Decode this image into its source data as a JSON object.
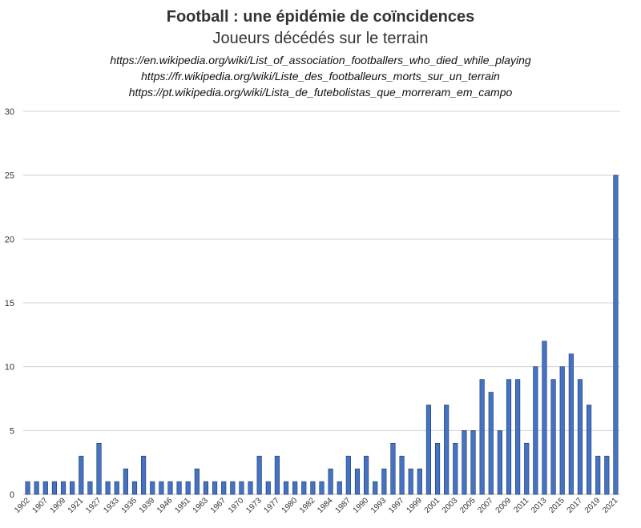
{
  "chart_data": {
    "type": "bar",
    "title": "Football : une épidémie de coïncidences",
    "subtitle": "Joueurs décédés sur le terrain",
    "sources": [
      "https://en.wikipedia.org/wiki/List_of_association_footballers_who_died_while_playing",
      "https://fr.wikipedia.org/wiki/Liste_des_footballeurs_morts_sur_un_terrain",
      "https://pt.wikipedia.org/wiki/Lista_de_futebolistas_que_morreram_em_campo"
    ],
    "xlabel": "",
    "ylabel": "",
    "ylim": [
      0,
      30
    ],
    "yticks": [
      0,
      5,
      10,
      15,
      20,
      25,
      30
    ],
    "grid": true,
    "bar_color": "#4472C4",
    "bar_edge_color": "#1F3864",
    "categories": [
      "1902",
      "",
      "1907",
      "",
      "1909",
      "",
      "1921",
      "",
      "1927",
      "",
      "1933",
      "",
      "1935",
      "",
      "1939",
      "",
      "1946",
      "",
      "1951",
      "",
      "1963",
      "",
      "1967",
      "",
      "1970",
      "",
      "1973",
      "",
      "1977",
      "",
      "1980",
      "",
      "1982",
      "",
      "1984",
      "",
      "1987",
      "",
      "1990",
      "",
      "1993",
      "",
      "1997",
      "",
      "1999",
      "",
      "2001",
      "",
      "2003",
      "",
      "2005",
      "",
      "2007",
      "",
      "2009",
      "",
      "2011",
      "",
      "2013",
      "",
      "2015",
      "",
      "2017",
      "",
      "2019",
      "",
      "2021"
    ],
    "values": [
      1,
      1,
      1,
      1,
      1,
      1,
      3,
      1,
      4,
      1,
      1,
      2,
      1,
      3,
      1,
      1,
      1,
      1,
      1,
      2,
      1,
      1,
      1,
      1,
      1,
      1,
      3,
      1,
      3,
      1,
      1,
      1,
      1,
      1,
      2,
      1,
      3,
      2,
      3,
      1,
      2,
      4,
      3,
      2,
      2,
      7,
      4,
      7,
      4,
      5,
      5,
      9,
      8,
      5,
      9,
      9,
      4,
      10,
      12,
      9,
      10,
      11,
      9,
      7,
      3,
      3,
      25
    ]
  }
}
